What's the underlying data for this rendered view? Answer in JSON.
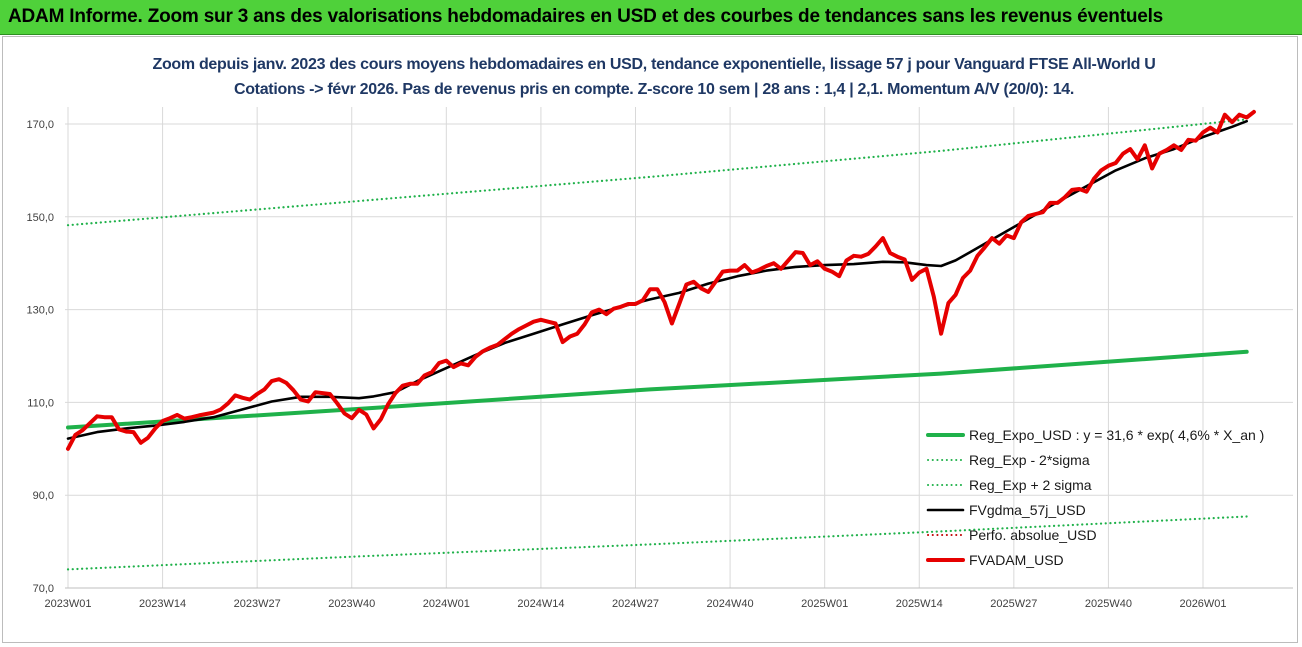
{
  "banner": {
    "title": "ADAM Informe. Zoom sur 3 ans des valorisations hebdomadaires en USD et des courbes de tendances sans les revenus éventuels"
  },
  "chart_data": {
    "type": "line",
    "title_line1": "Zoom depuis janv. 2023 des cours moyens hebdomadaires en USD, tendance exponentielle, lissage 57 j pour Vanguard FTSE All-World U",
    "title_line2": "Cotations -> févr 2026. Pas de revenus pris en compte. Z-score 10 sem | 28 ans : 1,4 | 2,1. Momentum A/V (20/0): 14.",
    "x_tick_labels": [
      "2023W01",
      "2023W14",
      "2023W27",
      "2023W40",
      "2024W01",
      "2024W14",
      "2024W27",
      "2024W40",
      "2025W01",
      "2025W14",
      "2025W27",
      "2025W40",
      "2026W01"
    ],
    "x_tick_weeks": [
      0,
      13,
      26,
      39,
      52,
      65,
      78,
      91,
      104,
      117,
      130,
      143,
      156
    ],
    "xlim": [
      0,
      162
    ],
    "ylim": [
      70,
      175
    ],
    "y_ticks": [
      70,
      90,
      110,
      130,
      150,
      170
    ],
    "y_tick_labels": [
      "70,0",
      "90,0",
      "110,0",
      "130,0",
      "150,0",
      "170,0"
    ],
    "grid": true,
    "legend_position": "bottom-right",
    "series": [
      {
        "name": "Reg_Expo_USD : y = 31,6 * exp( 4,6% *  X_an )",
        "key": "reg",
        "color": "#1fb14a",
        "style": "solid-thick",
        "points": [
          [
            0,
            104.6
          ],
          [
            40,
            108.6
          ],
          [
            80,
            112.8
          ],
          [
            120,
            116.2
          ],
          [
            162,
            120.9
          ]
        ]
      },
      {
        "name": "Reg_Exp - 2*sigma",
        "key": "reg_low",
        "color": "#1fb14a",
        "style": "dotted",
        "points": [
          [
            0,
            74.0
          ],
          [
            40,
            76.8
          ],
          [
            80,
            79.4
          ],
          [
            120,
            82.2
          ],
          [
            162,
            85.4
          ]
        ]
      },
      {
        "name": "Reg_Exp + 2 sigma",
        "key": "reg_high",
        "color": "#1fb14a",
        "style": "dotted",
        "points": [
          [
            0,
            148.2
          ],
          [
            40,
            153.4
          ],
          [
            80,
            158.6
          ],
          [
            120,
            164.2
          ],
          [
            162,
            171.0
          ]
        ]
      },
      {
        "name": "FVgdma_57j_USD",
        "key": "ma",
        "color": "#000000",
        "style": "solid",
        "points": [
          [
            0,
            102.2
          ],
          [
            4,
            103.6
          ],
          [
            8,
            104.4
          ],
          [
            12,
            105.0
          ],
          [
            16,
            105.8
          ],
          [
            20,
            106.8
          ],
          [
            24,
            108.5
          ],
          [
            28,
            110.2
          ],
          [
            32,
            111.2
          ],
          [
            36,
            111.2
          ],
          [
            40,
            110.9
          ],
          [
            42,
            111.3
          ],
          [
            45,
            112.2
          ],
          [
            48,
            114.6
          ],
          [
            52,
            117.4
          ],
          [
            56,
            120.2
          ],
          [
            60,
            122.8
          ],
          [
            64,
            124.8
          ],
          [
            68,
            126.8
          ],
          [
            72,
            128.8
          ],
          [
            76,
            130.6
          ],
          [
            80,
            132.2
          ],
          [
            84,
            133.6
          ],
          [
            88,
            135.6
          ],
          [
            92,
            137.2
          ],
          [
            96,
            138.4
          ],
          [
            100,
            139.2
          ],
          [
            104,
            139.6
          ],
          [
            108,
            139.8
          ],
          [
            112,
            140.3
          ],
          [
            115,
            140.2
          ],
          [
            118,
            139.6
          ],
          [
            120,
            139.4
          ],
          [
            122,
            140.6
          ],
          [
            124,
            142.4
          ],
          [
            128,
            146.0
          ],
          [
            132,
            149.6
          ],
          [
            136,
            153.2
          ],
          [
            140,
            156.6
          ],
          [
            144,
            160.0
          ],
          [
            148,
            162.6
          ],
          [
            152,
            164.6
          ],
          [
            156,
            167.2
          ],
          [
            160,
            169.4
          ],
          [
            162,
            170.6
          ]
        ]
      },
      {
        "name": "Perfo. absolue_USD",
        "key": "perf",
        "color": "#c00000",
        "style": "dotted-legend-only",
        "points": []
      },
      {
        "name": "FVADAM_USD",
        "key": "price",
        "color": "#e60000",
        "style": "solid-thick",
        "points": [
          [
            0,
            100.0
          ],
          [
            1,
            103.0
          ],
          [
            2,
            104.0
          ],
          [
            3,
            105.5
          ],
          [
            4,
            107.0
          ],
          [
            5,
            106.8
          ],
          [
            6,
            106.8
          ],
          [
            7,
            104.2
          ],
          [
            8,
            103.7
          ],
          [
            9,
            103.6
          ],
          [
            10,
            101.3
          ],
          [
            11,
            102.4
          ],
          [
            12,
            104.4
          ],
          [
            13,
            106.0
          ],
          [
            14,
            106.6
          ],
          [
            15,
            107.3
          ],
          [
            16,
            106.5
          ],
          [
            17,
            106.8
          ],
          [
            18,
            107.2
          ],
          [
            19,
            107.5
          ],
          [
            20,
            107.8
          ],
          [
            21,
            108.5
          ],
          [
            22,
            109.8
          ],
          [
            23,
            111.5
          ],
          [
            24,
            111.0
          ],
          [
            25,
            110.6
          ],
          [
            26,
            111.8
          ],
          [
            27,
            112.8
          ],
          [
            28,
            114.6
          ],
          [
            29,
            115.0
          ],
          [
            30,
            114.2
          ],
          [
            31,
            112.6
          ],
          [
            32,
            110.6
          ],
          [
            33,
            110.2
          ],
          [
            34,
            112.2
          ],
          [
            35,
            112.0
          ],
          [
            36,
            111.8
          ],
          [
            37,
            109.8
          ],
          [
            38,
            107.6
          ],
          [
            39,
            106.6
          ],
          [
            40,
            108.4
          ],
          [
            41,
            107.4
          ],
          [
            42,
            104.4
          ],
          [
            43,
            106.4
          ],
          [
            44,
            109.6
          ],
          [
            45,
            112.0
          ],
          [
            46,
            113.6
          ],
          [
            47,
            114.0
          ],
          [
            48,
            114.0
          ],
          [
            49,
            115.8
          ],
          [
            50,
            116.5
          ],
          [
            51,
            118.5
          ],
          [
            52,
            119.0
          ],
          [
            53,
            117.6
          ],
          [
            54,
            118.4
          ],
          [
            55,
            118.0
          ],
          [
            56,
            119.8
          ],
          [
            57,
            121.0
          ],
          [
            58,
            121.8
          ],
          [
            59,
            122.4
          ],
          [
            60,
            123.6
          ],
          [
            61,
            124.8
          ],
          [
            62,
            125.8
          ],
          [
            63,
            126.6
          ],
          [
            64,
            127.4
          ],
          [
            65,
            127.8
          ],
          [
            66,
            127.4
          ],
          [
            67,
            127.0
          ],
          [
            68,
            123.0
          ],
          [
            69,
            124.2
          ],
          [
            70,
            124.8
          ],
          [
            71,
            126.8
          ],
          [
            72,
            129.4
          ],
          [
            73,
            130.0
          ],
          [
            74,
            129.0
          ],
          [
            75,
            130.2
          ],
          [
            76,
            130.6
          ],
          [
            77,
            131.2
          ],
          [
            78,
            131.2
          ],
          [
            79,
            132.0
          ],
          [
            80,
            134.4
          ],
          [
            81,
            134.4
          ],
          [
            82,
            131.6
          ],
          [
            83,
            127.0
          ],
          [
            84,
            131.2
          ],
          [
            85,
            135.4
          ],
          [
            86,
            136.0
          ],
          [
            87,
            134.6
          ],
          [
            88,
            133.8
          ],
          [
            89,
            136.0
          ],
          [
            90,
            138.2
          ],
          [
            91,
            138.4
          ],
          [
            92,
            138.4
          ],
          [
            93,
            139.6
          ],
          [
            94,
            138.0
          ],
          [
            95,
            138.6
          ],
          [
            96,
            139.4
          ],
          [
            97,
            140.0
          ],
          [
            98,
            138.8
          ],
          [
            99,
            140.6
          ],
          [
            100,
            142.4
          ],
          [
            101,
            142.2
          ],
          [
            102,
            139.6
          ],
          [
            103,
            140.4
          ],
          [
            104,
            138.8
          ],
          [
            105,
            138.2
          ],
          [
            106,
            137.2
          ],
          [
            107,
            140.6
          ],
          [
            108,
            141.6
          ],
          [
            109,
            141.4
          ],
          [
            110,
            142.0
          ],
          [
            111,
            143.6
          ],
          [
            112,
            145.4
          ],
          [
            113,
            142.2
          ],
          [
            114,
            141.4
          ],
          [
            115,
            140.8
          ],
          [
            116,
            136.4
          ],
          [
            117,
            138.0
          ],
          [
            118,
            138.8
          ],
          [
            119,
            132.8
          ],
          [
            120,
            124.8
          ],
          [
            121,
            131.4
          ],
          [
            122,
            133.2
          ],
          [
            123,
            136.8
          ],
          [
            124,
            138.4
          ],
          [
            125,
            141.6
          ],
          [
            126,
            143.4
          ],
          [
            127,
            145.4
          ],
          [
            128,
            144.2
          ],
          [
            129,
            146.0
          ],
          [
            130,
            145.4
          ],
          [
            131,
            148.8
          ],
          [
            132,
            150.2
          ],
          [
            133,
            150.6
          ],
          [
            134,
            151.0
          ],
          [
            135,
            153.0
          ],
          [
            136,
            153.0
          ],
          [
            137,
            154.2
          ],
          [
            138,
            155.8
          ],
          [
            139,
            156.0
          ],
          [
            140,
            155.4
          ],
          [
            141,
            158.2
          ],
          [
            142,
            160.0
          ],
          [
            143,
            161.0
          ],
          [
            144,
            161.6
          ],
          [
            145,
            163.6
          ],
          [
            146,
            164.6
          ],
          [
            147,
            162.4
          ],
          [
            148,
            165.4
          ],
          [
            149,
            160.4
          ],
          [
            150,
            163.6
          ],
          [
            151,
            164.4
          ],
          [
            152,
            165.4
          ],
          [
            153,
            164.4
          ],
          [
            154,
            166.6
          ],
          [
            155,
            166.4
          ],
          [
            156,
            168.2
          ],
          [
            157,
            169.2
          ],
          [
            158,
            168.2
          ],
          [
            159,
            172.0
          ],
          [
            160,
            170.4
          ],
          [
            161,
            172.0
          ],
          [
            162,
            171.4
          ],
          [
            163,
            172.6
          ]
        ]
      }
    ]
  }
}
